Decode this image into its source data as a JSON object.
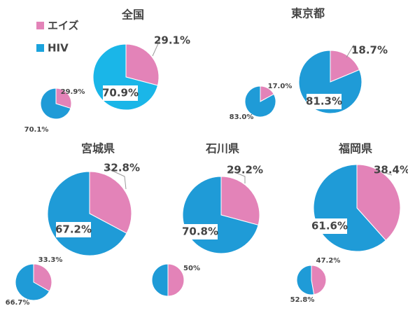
{
  "legend": {
    "labels": [
      "エイズ",
      "HIV"
    ],
    "colors": [
      "#e383b8",
      "#1ba3dd"
    ]
  },
  "chart_data": [
    {
      "type": "pie",
      "title": "全国",
      "values": [
        29.1,
        70.9
      ],
      "value_labels": [
        "29.1%",
        "70.9%"
      ],
      "colors": [
        "#e383b8",
        "#1ab6e8"
      ]
    },
    {
      "type": "pie",
      "values": [
        29.9,
        70.1
      ],
      "value_labels": [
        "29.9%",
        "70.1%"
      ],
      "colors": [
        "#e383b8",
        "#1f9bd7"
      ]
    },
    {
      "type": "pie",
      "title": "東京都",
      "values": [
        18.7,
        81.3
      ],
      "value_labels": [
        "18.7%",
        "81.3%"
      ],
      "colors": [
        "#e383b8",
        "#1f9bd7"
      ]
    },
    {
      "type": "pie",
      "values": [
        17.0,
        83.0
      ],
      "value_labels": [
        "17.0%",
        "83.0%"
      ],
      "colors": [
        "#e383b8",
        "#1f9bd7"
      ]
    },
    {
      "type": "pie",
      "title": "宮城県",
      "values": [
        32.8,
        67.2
      ],
      "value_labels": [
        "32.8%",
        "67.2%"
      ],
      "colors": [
        "#e383b8",
        "#1f9bd7"
      ]
    },
    {
      "type": "pie",
      "values": [
        33.3,
        66.7
      ],
      "value_labels": [
        "33.3%",
        "66.7%"
      ],
      "colors": [
        "#e383b8",
        "#1f9bd7"
      ]
    },
    {
      "type": "pie",
      "title": "石川県",
      "values": [
        29.2,
        70.8
      ],
      "value_labels": [
        "29.2%",
        "70.8%"
      ],
      "colors": [
        "#e383b8",
        "#1f9bd7"
      ]
    },
    {
      "type": "pie",
      "values": [
        50,
        50
      ],
      "value_labels": [
        "50%",
        null
      ],
      "colors": [
        "#e383b8",
        "#1f9bd7"
      ]
    },
    {
      "type": "pie",
      "title": "福岡県",
      "values": [
        38.4,
        61.6
      ],
      "value_labels": [
        "38.4%",
        "61.6%"
      ],
      "colors": [
        "#e383b8",
        "#1f9bd7"
      ]
    },
    {
      "type": "pie",
      "values": [
        47.2,
        52.8
      ],
      "value_labels": [
        "47.2%",
        "52.8%"
      ],
      "colors": [
        "#e383b8",
        "#1f9bd7"
      ]
    }
  ]
}
